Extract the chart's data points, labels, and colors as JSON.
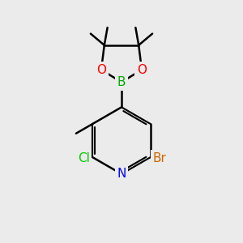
{
  "bg_color": "#ebebeb",
  "bond_color": "#000000",
  "bond_width": 1.8,
  "atom_colors": {
    "N": "#0000ff",
    "O": "#ff0000",
    "B": "#00aa00",
    "Cl": "#00cc00",
    "Br": "#cc6600",
    "C": "#000000"
  },
  "figsize": [
    3.0,
    3.0
  ],
  "dpi": 100,
  "xlim": [
    0,
    10
  ],
  "ylim": [
    0,
    10
  ]
}
